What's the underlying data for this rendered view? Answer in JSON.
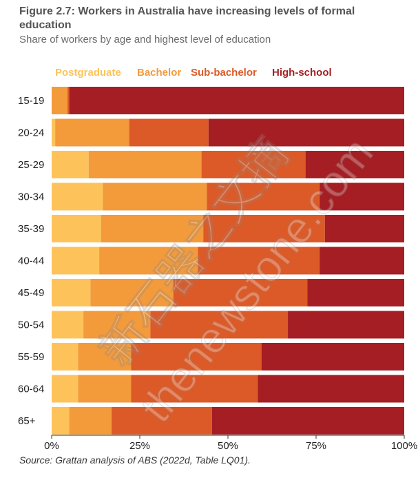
{
  "figure": {
    "title": "Figure 2.7: Workers in Australia have increasing levels of formal education",
    "subtitle": "Share of workers by age and highest level of education",
    "source": "Source: Grattan analysis of ABS (2022d, Table LQ01)."
  },
  "watermark": {
    "text": "thenewstone.com",
    "cjk": "新石器之文摘"
  },
  "chart_data": {
    "type": "bar",
    "orientation": "horizontal",
    "stacked": true,
    "categories": [
      "15-19",
      "20-24",
      "25-29",
      "30-34",
      "35-39",
      "40-44",
      "45-49",
      "50-54",
      "55-59",
      "60-64",
      "65+"
    ],
    "series": [
      {
        "name": "Postgraduate",
        "color": "#fdc35a",
        "values": [
          0,
          1,
          10.5,
          14.5,
          14,
          13.5,
          11,
          9,
          7.5,
          7.5,
          5
        ]
      },
      {
        "name": "Bachelor",
        "color": "#f39a3b",
        "values": [
          4.5,
          21,
          32,
          29.5,
          29,
          28,
          23.5,
          19,
          15,
          15,
          12
        ]
      },
      {
        "name": "Sub-bachelor",
        "color": "#dc5a27",
        "values": [
          0.5,
          22.5,
          29.5,
          32,
          34.5,
          34.5,
          38,
          39,
          37,
          36,
          28.5
        ]
      },
      {
        "name": "High-school",
        "color": "#a51e23",
        "values": [
          95,
          55.5,
          28,
          24,
          22.5,
          24,
          27.5,
          33,
          40.5,
          41.5,
          54.5
        ]
      }
    ],
    "xaxis": {
      "ticks": [
        "0%",
        "25%",
        "50%",
        "75%",
        "100%"
      ],
      "range": [
        0,
        100
      ]
    },
    "legend_position": "top"
  }
}
